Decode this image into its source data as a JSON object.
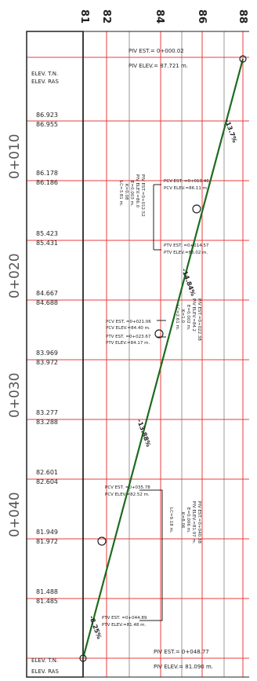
{
  "axis": {
    "ticks": [
      "81",
      "82",
      "84",
      "86",
      "88"
    ]
  },
  "stations": [
    "0+010",
    "0+020",
    "0+030",
    "0+040"
  ],
  "left_header": [
    "ELEV. T.N.",
    "ELEV. RAS"
  ],
  "left_footer": [
    "ELEV. T.N.",
    "ELEV. RAS"
  ],
  "elevation_pairs": [
    [
      "86.923",
      "86.955"
    ],
    [
      "86.178",
      "86.186"
    ],
    [
      "85.423",
      "85.431"
    ],
    [
      "84.667",
      "84.688"
    ],
    [
      "83.969",
      "83.972"
    ],
    [
      "83.277",
      "83.288"
    ],
    [
      "82.601",
      "82.604"
    ],
    [
      "81.949",
      "81.972"
    ],
    [
      "81.488",
      "81.485"
    ]
  ],
  "piv_top": {
    "est": "PIV EST.= 0+000.02",
    "elev": "PIV ELEV.= 87.721 m."
  },
  "piv_bottom": {
    "est": "PIV EST.= 0+048.77",
    "elev": "PIV ELEV.= 81.090 m."
  },
  "slopes": [
    "-13.7%",
    "-14.84%",
    "-13.88%",
    "-8.25%"
  ],
  "curves": [
    {
      "pcv": [
        "PCV EST. =0+010.46",
        "PCV ELEV.=86.11 m."
      ],
      "ptv": [
        "PTV EST. =0+014.57",
        "PTV ELEV.=86.02 m."
      ],
      "piv": [
        "PIV EST.=0+012.52",
        "PIV ELEV.=86.0",
        "E=0.003 m.",
        "K=0.08",
        "LC=3.81 m."
      ]
    },
    {
      "pcv": [
        "PCV EST. =0+021.06",
        "PCV ELEV.=84.40 m."
      ],
      "ptv": [
        "PTV EST. =0+023.67",
        "PTV ELEV.=84.17 m."
      ],
      "piv": [
        "PIV EST.=0+022.38",
        "PIV ELEV.=84.2",
        "E=0.002 m.",
        "K=1.0",
        "LC=2.61 m."
      ]
    },
    {
      "pcv": [
        "PCV EST. =0+035.78",
        "PCV ELEV.=82.52 m."
      ],
      "ptv": [
        "PTV EST. =0+044.89",
        "PTV ELEV.=81.48 m."
      ],
      "piv": [
        "PIV EST.=0+040.38",
        "PIV ELEV.=81.97 m.",
        "E=0.006 m.",
        "K=8.06",
        "LC=9.18 m."
      ]
    }
  ],
  "colors": {
    "grid": "#e83c3c",
    "line": "#1e6b1e",
    "text": "#222222"
  }
}
